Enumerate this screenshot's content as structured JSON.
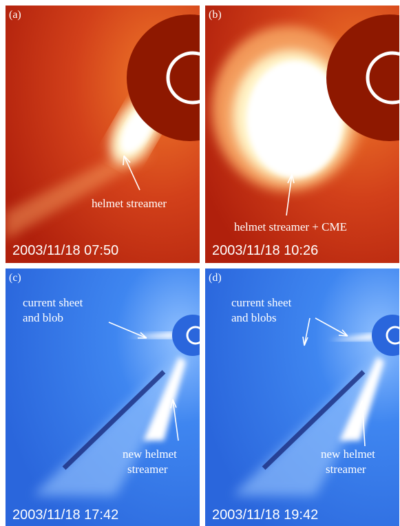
{
  "panels": [
    {
      "label": "(a)",
      "annotations": [
        {
          "lines": [
            "helmet streamer"
          ]
        }
      ],
      "timestamp": "2003/11/18 07:50"
    },
    {
      "label": "(b)",
      "annotations": [
        {
          "lines": [
            "helmet streamer + CME"
          ]
        }
      ],
      "timestamp": "2003/11/18 10:26"
    },
    {
      "label": "(c)",
      "annotations": [
        {
          "lines": [
            "current sheet",
            "and blob"
          ]
        },
        {
          "lines": [
            "new helmet",
            "streamer"
          ]
        }
      ],
      "timestamp": "2003/11/18 17:42"
    },
    {
      "label": "(d)",
      "annotations": [
        {
          "lines": [
            "current sheet",
            "and blobs"
          ]
        },
        {
          "lines": [
            "new helmet",
            "streamer"
          ]
        }
      ],
      "timestamp": "2003/11/18 19:42"
    }
  ]
}
